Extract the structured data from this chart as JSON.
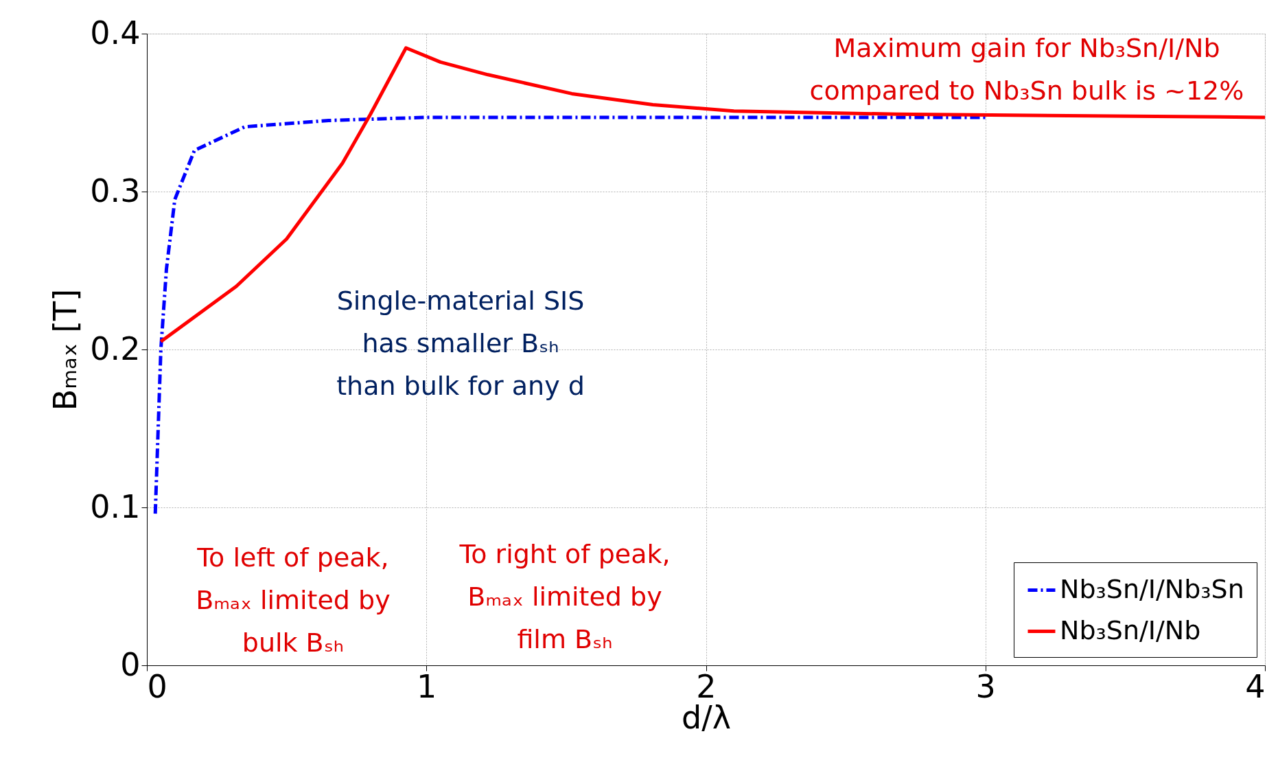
{
  "chart_data": {
    "type": "line",
    "xlabel": "d/λ",
    "ylabel": "Bₘₐₓ [T]",
    "xlim": [
      0,
      4
    ],
    "xticks": [
      0,
      1,
      2,
      3,
      4
    ],
    "ylim": [
      0,
      0.4
    ],
    "yticks": [
      0,
      0.1,
      0.2,
      0.3,
      0.4
    ],
    "grid": true,
    "legend": "bottom right",
    "series": [
      {
        "name": "Nb₃Sn/I/Nb₃Sn",
        "color": "#0000ff",
        "line_style": "dashed",
        "x": [
          0.03,
          0.05,
          0.07,
          0.1,
          0.17,
          0.35,
          0.65,
          1.0,
          2.0,
          3.0
        ],
        "values": [
          0.096,
          0.2,
          0.251,
          0.295,
          0.326,
          0.341,
          0.345,
          0.347,
          0.347,
          0.347
        ]
      },
      {
        "name": "Nb₃Sn/I/Nb",
        "color": "#ff0000",
        "line_style": "solid",
        "x": [
          0.05,
          0.32,
          0.5,
          0.7,
          0.8,
          0.927,
          1.05,
          1.22,
          1.52,
          1.81,
          2.1,
          2.68,
          4.0
        ],
        "values": [
          0.205,
          0.24,
          0.27,
          0.318,
          0.349,
          0.391,
          0.382,
          0.374,
          0.362,
          0.355,
          0.351,
          0.349,
          0.347
        ]
      }
    ],
    "annotations": [
      "Maximum gain for Nb₃Sn/I/Nb\ncompared to Nb₃Sn bulk is ~12%",
      "Single-material SIS\nhas smaller Bₛₕ\nthan bulk for any d",
      "To left of peak,\nBₘₐₓ limited by\nbulk Bₛₕ",
      "To right of peak,\nBₘₐₓ limited by\nfilm Bₛₕ"
    ]
  }
}
